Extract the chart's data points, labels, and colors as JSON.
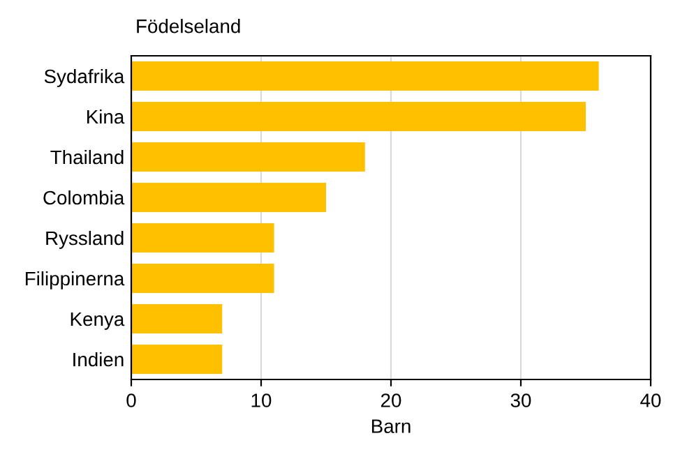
{
  "chart_data": {
    "type": "bar",
    "orientation": "horizontal",
    "ylabel": "Födelseland",
    "xlabel": "Barn",
    "categories": [
      "Sydafrika",
      "Kina",
      "Thailand",
      "Colombia",
      "Ryssland",
      "Filippinerna",
      "Kenya",
      "Indien"
    ],
    "values": [
      36,
      35,
      18,
      15,
      11,
      11,
      7,
      7
    ],
    "color": "#ffc000",
    "xlim": [
      0,
      40
    ],
    "xticks": [
      0,
      10,
      20,
      30,
      40
    ],
    "grid": "x",
    "legend": false
  }
}
